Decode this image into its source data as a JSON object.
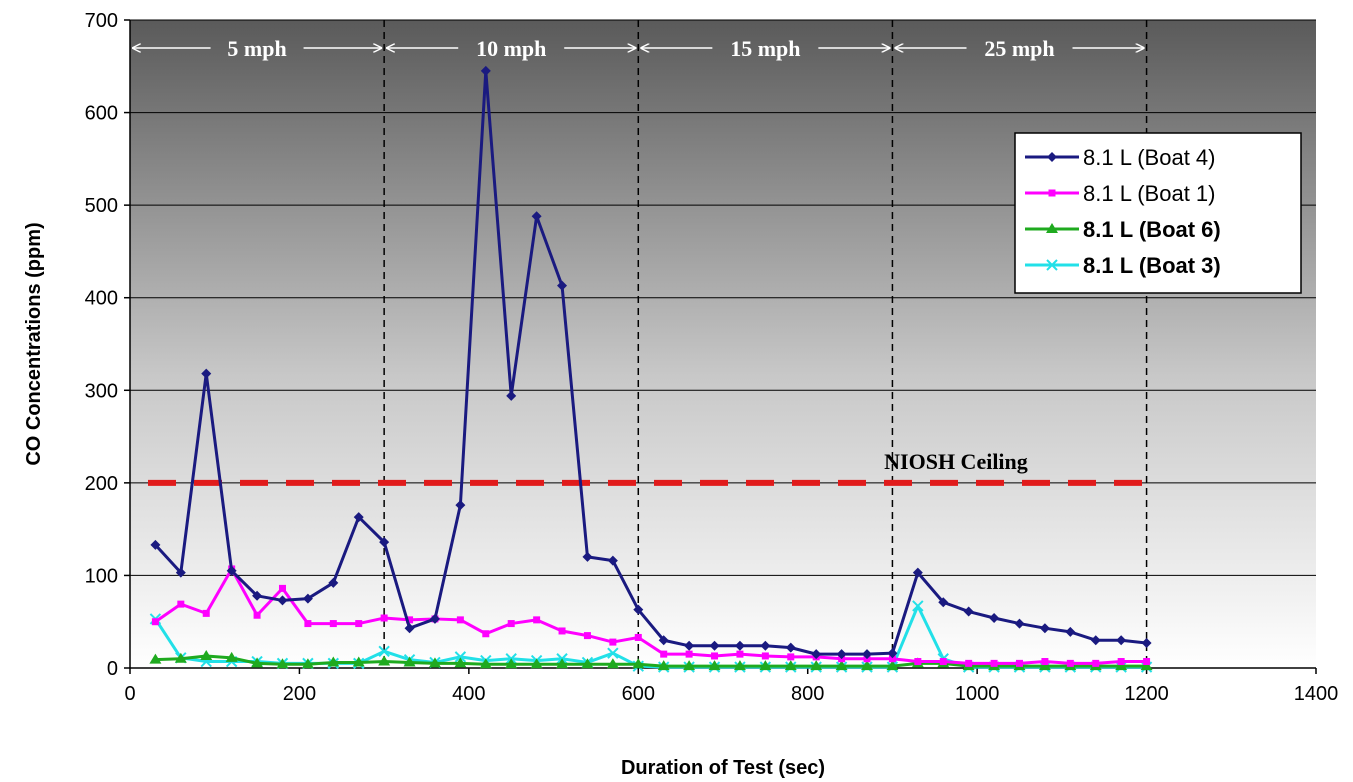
{
  "chart_data": {
    "type": "line",
    "xlabel": "Duration of Test (sec)",
    "ylabel": "CO Concentrations (ppm)",
    "xlim": [
      0,
      1400
    ],
    "ylim": [
      0,
      700
    ],
    "x_ticks": [
      "0",
      "200",
      "400",
      "600",
      "800",
      "1000",
      "1200",
      "1400"
    ],
    "y_ticks": [
      "0",
      "100",
      "200",
      "300",
      "400",
      "500",
      "600",
      "700"
    ],
    "grid": "horizontal",
    "legend_position": "right",
    "background": "gradient dark-gray top to white bottom",
    "speed_segments": [
      {
        "label": "5 mph",
        "start": 0,
        "end": 300
      },
      {
        "label": "10 mph",
        "start": 300,
        "end": 600
      },
      {
        "label": "15 mph",
        "start": 600,
        "end": 900
      },
      {
        "label": "25 mph",
        "start": 900,
        "end": 1200
      }
    ],
    "segment_dividers": [
      300,
      600,
      900,
      1200
    ],
    "ceiling": {
      "label": "NIOSH Ceiling",
      "value": 200,
      "color": "#e11b1b",
      "x_start": 0,
      "x_end": 1200
    },
    "x": [
      30,
      60,
      90,
      120,
      150,
      180,
      210,
      240,
      270,
      300,
      330,
      360,
      390,
      420,
      450,
      480,
      510,
      540,
      570,
      600,
      630,
      660,
      690,
      720,
      750,
      780,
      810,
      840,
      870,
      900,
      930,
      960,
      990,
      1020,
      1050,
      1080,
      1110,
      1140,
      1170,
      1200
    ],
    "series": [
      {
        "name": "8.1 L (Boat 4)",
        "color": "#1a1a80",
        "marker": "diamond",
        "bold": false,
        "values": [
          133,
          103,
          318,
          105,
          78,
          73,
          75,
          92,
          163,
          136,
          43,
          53,
          176,
          645,
          294,
          488,
          413,
          120,
          116,
          63,
          30,
          24,
          24,
          24,
          24,
          22,
          15,
          15,
          15,
          16,
          103,
          71,
          61,
          54,
          48,
          43,
          39,
          30,
          30,
          27
        ]
      },
      {
        "name": "8.1 L (Boat 1)",
        "color": "#ff00ff",
        "marker": "square",
        "bold": false,
        "values": [
          50,
          69,
          59,
          107,
          57,
          86,
          48,
          48,
          48,
          54,
          52,
          53,
          52,
          37,
          48,
          52,
          40,
          35,
          28,
          33,
          15,
          15,
          13,
          15,
          13,
          12,
          12,
          10,
          10,
          10,
          7,
          7,
          5,
          5,
          5,
          7,
          5,
          5,
          7,
          7
        ]
      },
      {
        "name": "8.1 L (Boat 6)",
        "color": "#1faa1f",
        "marker": "triangle",
        "bold": true,
        "values": [
          9,
          10,
          13,
          11,
          5,
          4,
          4,
          6,
          6,
          7,
          6,
          5,
          5,
          4,
          4,
          4,
          4,
          4,
          4,
          4,
          2,
          2,
          2,
          2,
          2,
          2,
          2,
          2,
          2,
          2,
          5,
          5,
          2,
          2,
          2,
          2,
          2,
          2,
          2,
          2
        ]
      },
      {
        "name": "8.1 L (Boat 3)",
        "color": "#22e0e8",
        "marker": "x",
        "bold": true,
        "values": [
          53,
          11,
          7,
          7,
          7,
          5,
          5,
          5,
          5,
          18,
          9,
          6,
          12,
          8,
          10,
          8,
          10,
          6,
          16,
          2,
          1,
          1,
          1,
          1,
          1,
          1,
          1,
          1,
          1,
          1,
          67,
          10,
          1,
          1,
          1,
          1,
          1,
          1,
          1,
          1
        ]
      }
    ]
  }
}
